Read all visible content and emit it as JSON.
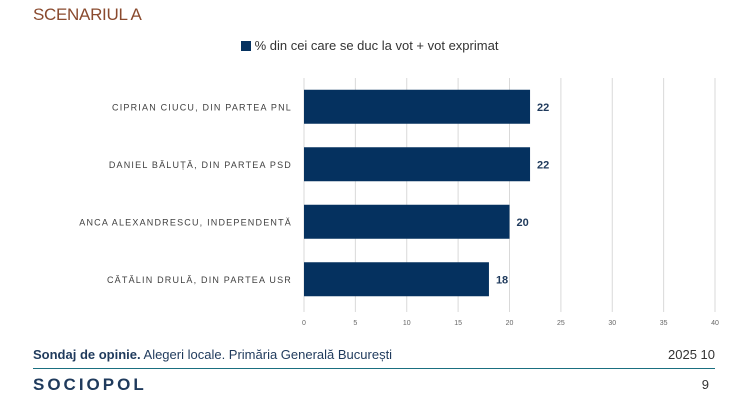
{
  "title": "SCENARIUL A",
  "footer": {
    "survey_bold": "Sondaj de opinie.",
    "survey_rest": " Alegeri locale. Primăria Generală București",
    "date": "2025 10",
    "logo": "SOCIOPOL",
    "page": "9"
  },
  "chart_data": {
    "type": "bar",
    "orientation": "horizontal",
    "categories": [
      "CIPRIAN CIUCU, DIN PARTEA PNL",
      "DANIEL BĂLUȚĂ, DIN PARTEA PSD",
      "ANCA ALEXANDRESCU, INDEPENDENTĂ",
      "CĂTĂLIN DRULĂ, DIN PARTEA USR"
    ],
    "series": [
      {
        "name": "% din cei care se duc la vot + vot exprimat",
        "values": [
          22,
          22,
          20,
          18
        ]
      }
    ],
    "xlim": [
      0,
      40
    ],
    "xticks": [
      0,
      5,
      10,
      15,
      20,
      25,
      30,
      35,
      40
    ],
    "grid": true,
    "legend": "top",
    "bar_color": "#05315f"
  }
}
